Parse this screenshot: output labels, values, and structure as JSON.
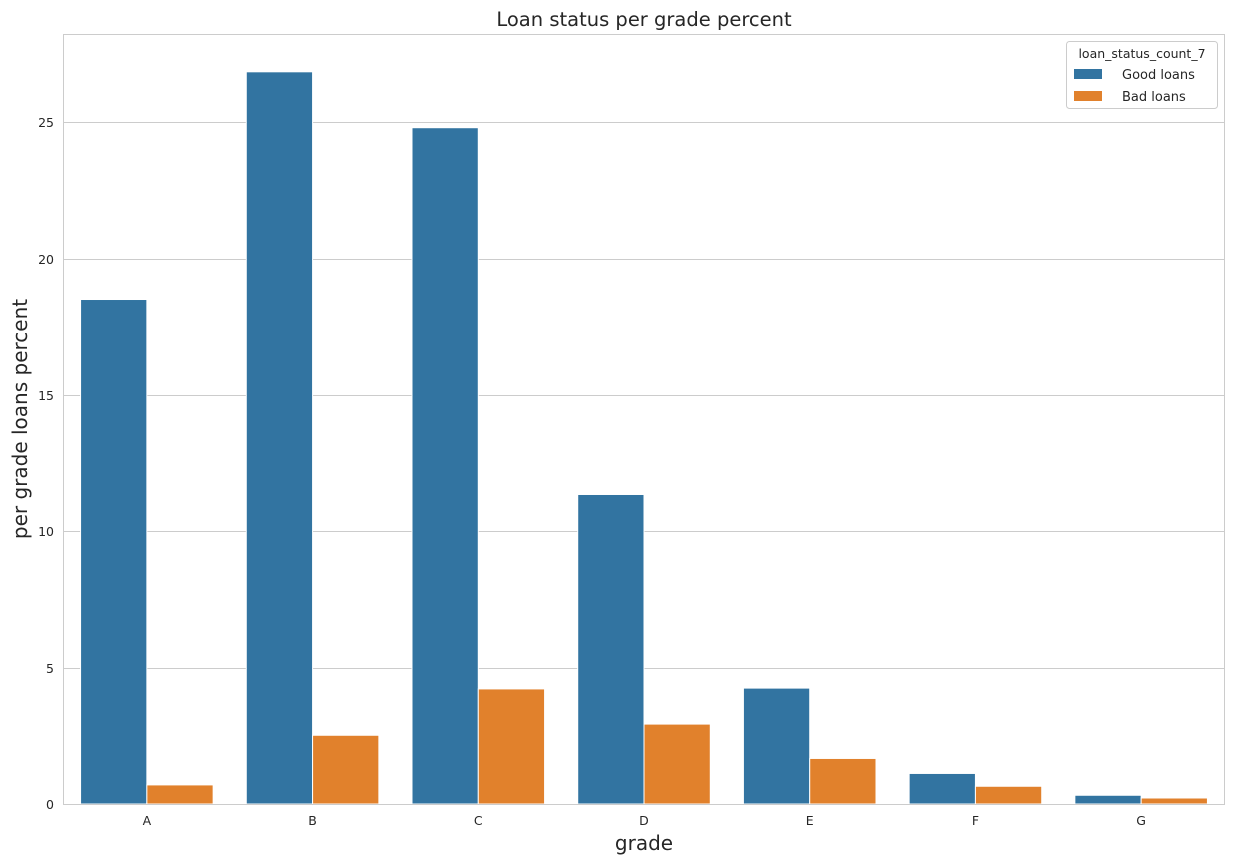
{
  "chart_data": {
    "type": "bar",
    "title": "Loan status per grade percent",
    "xlabel": "grade",
    "ylabel": "per grade loans percent",
    "categories": [
      "A",
      "B",
      "C",
      "D",
      "E",
      "F",
      "G"
    ],
    "series": [
      {
        "name": "Good loans",
        "color": "#3274a1",
        "values": [
          18.5,
          26.85,
          24.8,
          11.35,
          4.25,
          1.12,
          0.32
        ]
      },
      {
        "name": "Bad loans",
        "color": "#e1812c",
        "values": [
          0.7,
          2.52,
          4.22,
          2.93,
          1.67,
          0.65,
          0.22
        ]
      }
    ],
    "ylim": [
      0,
      28.2
    ],
    "yticks": [
      0,
      5,
      10,
      15,
      20,
      25
    ],
    "grid": true,
    "legend": {
      "title": "loan_status_count_7",
      "placement": "top-right"
    }
  }
}
